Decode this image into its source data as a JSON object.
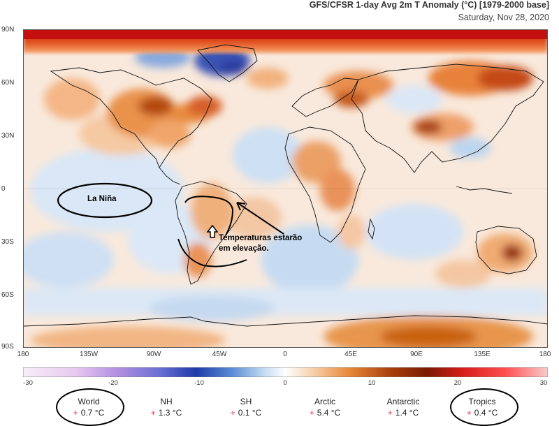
{
  "header": {
    "title": "GFS/CFSR 1-day Avg 2m T Anomaly (°C) [1979-2000 base]",
    "date": "Saturday, Nov 28, 2020"
  },
  "axes": {
    "lat_labels": [
      "90N",
      "60N",
      "30N",
      "0",
      "30S",
      "60S",
      "90S"
    ],
    "lon_labels": [
      "180",
      "135W",
      "90W",
      "45W",
      "0",
      "45E",
      "90E",
      "135E",
      "180"
    ]
  },
  "colorbar": {
    "ticks": [
      "-30",
      "-20",
      "-10",
      "0",
      "10",
      "20",
      "30"
    ],
    "range": [
      -30,
      30
    ],
    "colors": [
      "#f7e0f2",
      "#c9a7e6",
      "#7d6dd8",
      "#1f3aa8",
      "#5d8fd6",
      "#bcd7f0",
      "#ffffff",
      "#f7c79a",
      "#e88a3a",
      "#b34a06",
      "#7a1a02",
      "#cc1a1a",
      "#ff2a2a",
      "#f7c8c8"
    ]
  },
  "annotations": {
    "la_nina": "La Niña",
    "temp_line1": "Temperaturas estarão",
    "temp_line2": "em elevação."
  },
  "stats": [
    {
      "label": "World",
      "value": "0.7 °C",
      "sign": "+"
    },
    {
      "label": "NH",
      "value": "1.3 °C",
      "sign": "+"
    },
    {
      "label": "SH",
      "value": "0.1 °C",
      "sign": "+"
    },
    {
      "label": "Arctic",
      "value": "5.4 °C",
      "sign": "+"
    },
    {
      "label": "Antarctic",
      "value": "1.4 °C",
      "sign": "+"
    },
    {
      "label": "Tropics",
      "value": "0.4 °C",
      "sign": "+"
    }
  ]
}
